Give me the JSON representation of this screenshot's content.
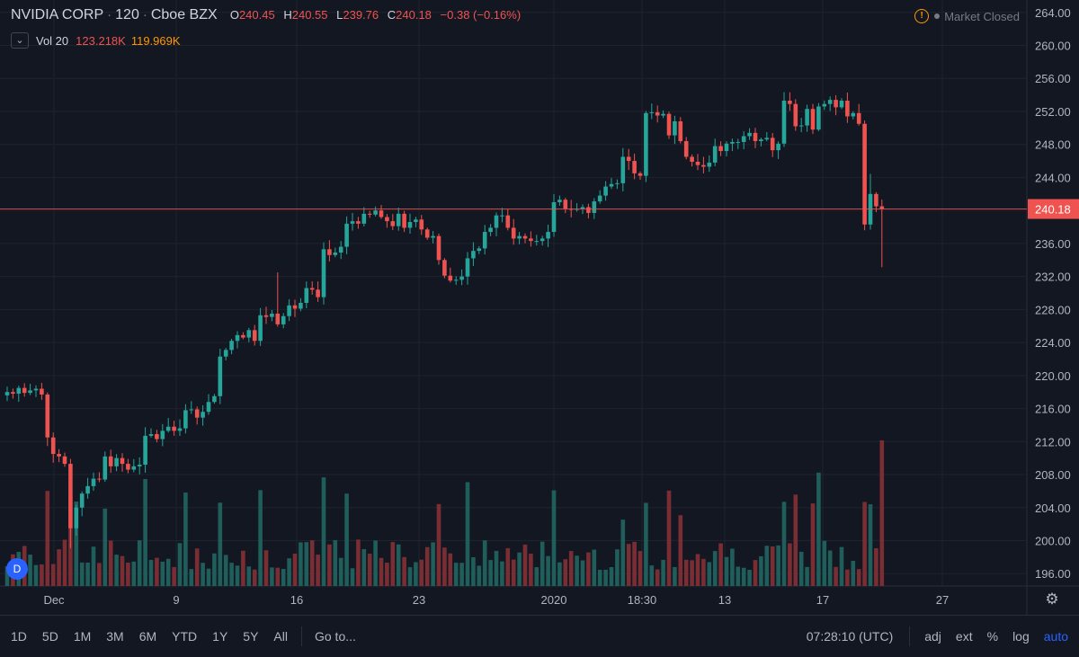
{
  "header": {
    "symbol": "NVIDIA CORP",
    "interval": "120",
    "exchange": "Cboe BZX",
    "open_key": "O",
    "open": "240.45",
    "high_key": "H",
    "high": "240.55",
    "low_key": "L",
    "low": "239.76",
    "close_key": "C",
    "close": "240.18",
    "change": "−0.38 (−0.16%)"
  },
  "volume_legend": {
    "label": "Vol 20",
    "value": "123.218K",
    "ma_value": "119.969K"
  },
  "status": {
    "text": "Market Closed",
    "icon": "warning-icon"
  },
  "badge": "D",
  "current_price_label": "240.18",
  "colors": {
    "up": "#26a69a",
    "down": "#ef5350",
    "vol_up": "#1f5e5a",
    "vol_down": "#7a2e33",
    "price_line": "#ef5350",
    "accent": "#2962ff",
    "warning": "#ff9800"
  },
  "toolbar": {
    "ranges": [
      "1D",
      "5D",
      "1M",
      "3M",
      "6M",
      "YTD",
      "1Y",
      "5Y",
      "All"
    ],
    "goto": "Go to...",
    "time": "07:28:10 (UTC)",
    "adj": "adj",
    "ext": "ext",
    "percent": "%",
    "log": "log",
    "auto": "auto"
  },
  "chart_data": {
    "type": "candlestick",
    "y_axis_ticks": [
      "264.00",
      "260.00",
      "256.00",
      "252.00",
      "248.00",
      "244.00",
      "240.00",
      "236.00",
      "232.00",
      "228.00",
      "224.00",
      "220.00",
      "216.00",
      "212.00",
      "208.00",
      "204.00",
      "200.00",
      "196.00"
    ],
    "ylim": [
      194.5,
      265.5
    ],
    "current_price": 240.18,
    "x_tick_labels": [
      "Dec",
      "9",
      "16",
      "23",
      "2020",
      "18:30",
      "13",
      "17",
      "27"
    ],
    "closes": [
      218,
      217.8,
      218.5,
      217.9,
      218.2,
      218.4,
      217.7,
      212.5,
      210.5,
      210.2,
      209.3,
      201.5,
      204,
      205.7,
      206.6,
      207.5,
      207.4,
      210.2,
      209,
      210,
      209.3,
      208.6,
      209,
      209.2,
      212.7,
      212.9,
      212.3,
      213.3,
      213.8,
      213.3,
      213.6,
      215.8,
      215.9,
      214.9,
      215.6,
      216.8,
      217.5,
      222.3,
      223.1,
      224.2,
      224.9,
      224.6,
      225.5,
      224.2,
      227.3,
      227.1,
      227.5,
      226.2,
      227.2,
      228.5,
      228.1,
      228.8,
      230.6,
      230.4,
      229.5,
      235.3,
      234.6,
      234.9,
      235.6,
      238.4,
      238.7,
      238.4,
      239.6,
      239.5,
      240,
      239.2,
      238.7,
      238.1,
      239.6,
      237.9,
      238.6,
      238.9,
      237.7,
      236.7,
      236.9,
      234,
      232.1,
      231.5,
      231.6,
      232,
      234.2,
      235.1,
      235.4,
      237.4,
      237.9,
      239.4,
      239.4,
      237.9,
      236.6,
      236.9,
      236.6,
      236.3,
      236.3,
      236.6,
      237.4,
      241,
      241.3,
      240.2,
      240.1,
      240.2,
      240.4,
      239.7,
      241.1,
      241.8,
      242.9,
      243.2,
      243.3,
      246.5,
      246,
      244.5,
      244.2,
      251.8,
      251.9,
      251.5,
      251.7,
      249.1,
      250.8,
      248.4,
      246.5,
      245.9,
      245.5,
      245.3,
      245.8,
      247.8,
      247.2,
      248.1,
      248.3,
      248.3,
      249,
      249.4,
      248.4,
      248.6,
      248.8,
      247.3,
      248.1,
      253.3,
      252.9,
      250.2,
      250.3,
      252.3,
      249.8,
      252.6,
      252.9,
      253.4,
      252.5,
      253.3,
      251.4,
      251.8,
      250.5,
      238.3,
      242,
      240.5,
      240.18
    ]
  }
}
